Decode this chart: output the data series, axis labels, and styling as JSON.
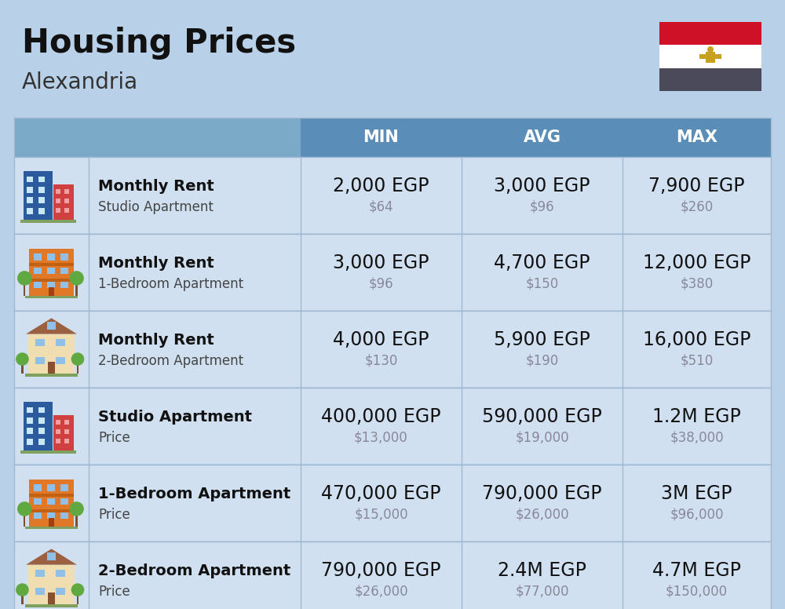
{
  "title": "Housing Prices",
  "subtitle": "Alexandria",
  "bg_color": "#b8d0e8",
  "header_bg": "#5a8db8",
  "header_left_bg": "#7aaac8",
  "header_text_color": "#ffffff",
  "row_bg": "#d0e0f0",
  "divider_color": "#a0b8d0",
  "col_headers": [
    "MIN",
    "AVG",
    "MAX"
  ],
  "rows": [
    {
      "icon": "blue_office",
      "label_bold": "Monthly Rent",
      "label_sub": "Studio Apartment",
      "min_egp": "2,000 EGP",
      "min_usd": "$64",
      "avg_egp": "3,000 EGP",
      "avg_usd": "$96",
      "max_egp": "7,900 EGP",
      "max_usd": "$260"
    },
    {
      "icon": "orange_apartment",
      "label_bold": "Monthly Rent",
      "label_sub": "1-Bedroom Apartment",
      "min_egp": "3,000 EGP",
      "min_usd": "$96",
      "avg_egp": "4,700 EGP",
      "avg_usd": "$150",
      "max_egp": "12,000 EGP",
      "max_usd": "$380"
    },
    {
      "icon": "beige_house",
      "label_bold": "Monthly Rent",
      "label_sub": "2-Bedroom Apartment",
      "min_egp": "4,000 EGP",
      "min_usd": "$130",
      "avg_egp": "5,900 EGP",
      "avg_usd": "$190",
      "max_egp": "16,000 EGP",
      "max_usd": "$510"
    },
    {
      "icon": "blue_office",
      "label_bold": "Studio Apartment",
      "label_sub": "Price",
      "min_egp": "400,000 EGP",
      "min_usd": "$13,000",
      "avg_egp": "590,000 EGP",
      "avg_usd": "$19,000",
      "max_egp": "1.2M EGP",
      "max_usd": "$38,000"
    },
    {
      "icon": "orange_apartment",
      "label_bold": "1-Bedroom Apartment",
      "label_sub": "Price",
      "min_egp": "470,000 EGP",
      "min_usd": "$15,000",
      "avg_egp": "790,000 EGP",
      "avg_usd": "$26,000",
      "max_egp": "3M EGP",
      "max_usd": "$96,000"
    },
    {
      "icon": "beige_house",
      "label_bold": "2-Bedroom Apartment",
      "label_sub": "Price",
      "min_egp": "790,000 EGP",
      "min_usd": "$26,000",
      "avg_egp": "2.4M EGP",
      "avg_usd": "$77,000",
      "max_egp": "4.7M EGP",
      "max_usd": "$150,000"
    }
  ],
  "egp_fontsize": 17,
  "usd_fontsize": 12,
  "usd_color": "#888899",
  "label_bold_fontsize": 14,
  "label_sub_fontsize": 12,
  "header_fontsize": 15
}
